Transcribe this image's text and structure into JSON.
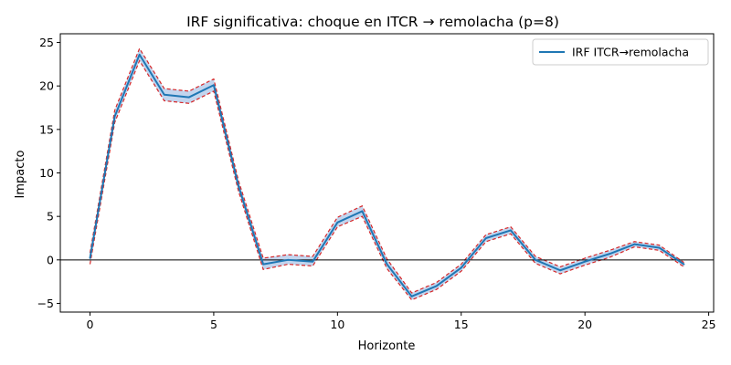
{
  "chart_data": {
    "type": "line",
    "title": "IRF significativa: choque en ITCR → remolacha (p=8)",
    "xlabel": "Horizonte",
    "ylabel": "Impacto",
    "xlim": [
      -1.2,
      25.2
    ],
    "ylim": [
      -6,
      26
    ],
    "xticks": [
      0,
      5,
      10,
      15,
      20,
      25
    ],
    "yticks": [
      -5,
      0,
      5,
      10,
      15,
      20,
      25
    ],
    "grid": false,
    "legend_position": "top-right",
    "zero_line": true,
    "colors": {
      "irf": "#1f77b4",
      "band": "#d62728",
      "band_fill": "#aec7e8",
      "zero": "#000000"
    },
    "x": [
      0,
      1,
      2,
      3,
      4,
      5,
      6,
      7,
      8,
      9,
      10,
      11,
      12,
      13,
      14,
      15,
      16,
      17,
      18,
      19,
      20,
      21,
      22,
      23,
      24
    ],
    "series": [
      {
        "name": "IRF ITCR→remolacha",
        "values": [
          0.2,
          16.5,
          23.6,
          19.0,
          18.7,
          20.1,
          8.5,
          -0.5,
          0.0,
          -0.2,
          4.3,
          5.6,
          -0.5,
          -4.2,
          -3.0,
          -0.9,
          2.5,
          3.4,
          0.0,
          -1.2,
          -0.2,
          0.7,
          1.8,
          1.4,
          -0.5
        ]
      }
    ],
    "band": {
      "lower": [
        -0.5,
        15.8,
        22.9,
        18.3,
        18.0,
        19.4,
        7.9,
        -1.1,
        -0.5,
        -0.7,
        3.8,
        5.0,
        -1.0,
        -4.6,
        -3.4,
        -1.3,
        2.1,
        3.0,
        -0.4,
        -1.6,
        -0.6,
        0.3,
        1.5,
        1.1,
        -0.8
      ],
      "upper": [
        0.8,
        17.2,
        24.3,
        19.7,
        19.4,
        20.8,
        9.1,
        0.2,
        0.6,
        0.4,
        4.9,
        6.2,
        0.1,
        -3.8,
        -2.6,
        -0.5,
        2.9,
        3.8,
        0.4,
        -0.8,
        0.2,
        1.1,
        2.1,
        1.7,
        -0.3
      ]
    }
  }
}
